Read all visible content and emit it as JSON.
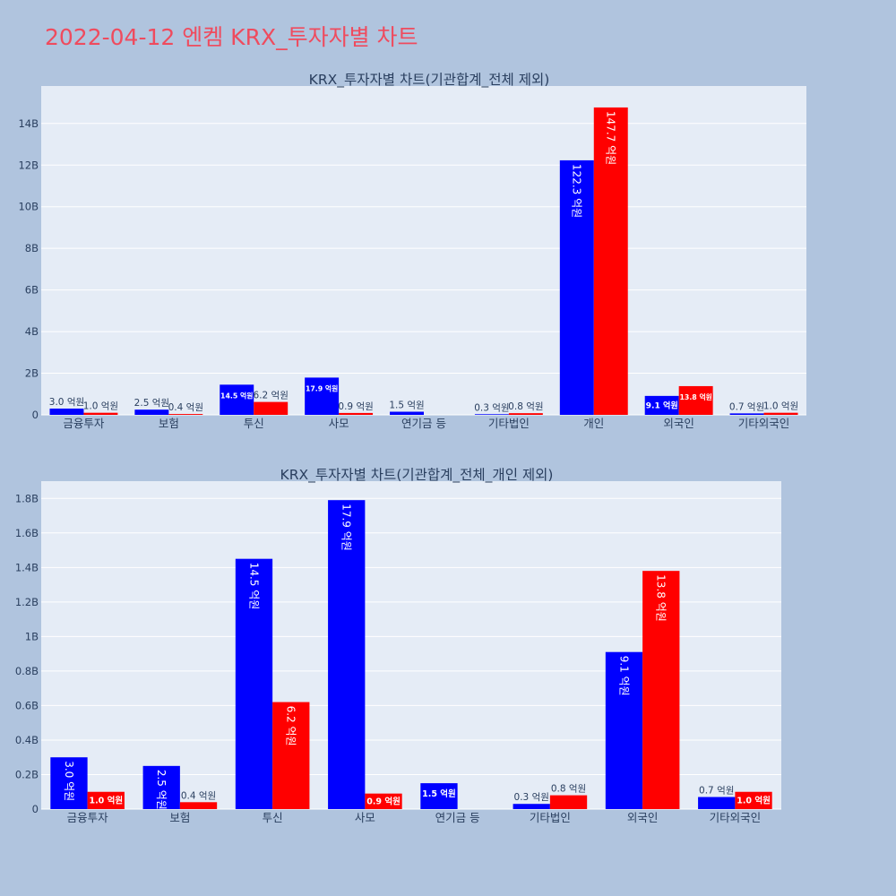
{
  "title": "2022-04-12 엔켐 KRX_투자자별 차트",
  "colors": {
    "background": "#b0c4de",
    "plot_bg": "#e5ecf6",
    "grid": "#ffffff",
    "title": "#ef4b5e",
    "text": "#2a3f5f",
    "buy": "#0000ff",
    "sell": "#ff0000"
  },
  "chart_data": [
    {
      "type": "bar",
      "title": "KRX_투자자별 차트(기관합계_전체 제외)",
      "categories": [
        "금융투자",
        "보험",
        "투신",
        "사모",
        "연기금 등",
        "기타법인",
        "개인",
        "외국인",
        "기타외국인"
      ],
      "series": [
        {
          "color": "#0000ff",
          "values": [
            300000000,
            250000000,
            1450000000,
            1790000000,
            150000000,
            30000000,
            12230000000,
            910000000,
            70000000
          ],
          "labels": [
            "3.0 억원",
            "2.5 억원",
            "14.5 억원",
            "17.9 억원",
            "1.5 억원",
            "0.3 억원",
            "122.3 억원",
            "9.1 억원",
            "0.7 억원"
          ]
        },
        {
          "color": "#ff0000",
          "values": [
            100000000,
            40000000,
            620000000,
            90000000,
            0,
            80000000,
            14770000000,
            1380000000,
            100000000
          ],
          "labels": [
            "1.0 억원",
            "0.4 억원",
            "6.2 억원",
            "0.9 억원",
            "",
            "0.8 억원",
            "147.7 억원",
            "13.8 억원",
            "1.0 억원"
          ]
        }
      ],
      "ylim": [
        0,
        15800000000
      ],
      "yticks": [
        0,
        2000000000,
        4000000000,
        6000000000,
        8000000000,
        10000000000,
        12000000000,
        14000000000
      ],
      "ytick_labels": [
        "0",
        "2B",
        "4B",
        "6B",
        "8B",
        "10B",
        "12B",
        "14B"
      ],
      "grid": true
    },
    {
      "type": "bar",
      "title": "KRX_투자자별 차트(기관합계_전체_개인 제외)",
      "categories": [
        "금융투자",
        "보험",
        "투신",
        "사모",
        "연기금 등",
        "기타법인",
        "외국인",
        "기타외국인"
      ],
      "series": [
        {
          "color": "#0000ff",
          "values": [
            300000000,
            250000000,
            1450000000,
            1790000000,
            150000000,
            30000000,
            910000000,
            70000000
          ],
          "labels": [
            "3.0 억원",
            "2.5 억원",
            "14.5 억원",
            "17.9 억원",
            "1.5 억원",
            "0.3 억원",
            "9.1 억원",
            "0.7 억원"
          ]
        },
        {
          "color": "#ff0000",
          "values": [
            100000000,
            40000000,
            620000000,
            90000000,
            0,
            80000000,
            1380000000,
            100000000
          ],
          "labels": [
            "1.0 억원",
            "0.4 억원",
            "6.2 억원",
            "0.9 억원",
            "",
            "0.8 억원",
            "13.8 억원",
            "1.0 억원"
          ]
        }
      ],
      "ylim": [
        0,
        1900000000
      ],
      "yticks": [
        0,
        200000000,
        400000000,
        600000000,
        800000000,
        1000000000,
        1200000000,
        1400000000,
        1600000000,
        1800000000
      ],
      "ytick_labels": [
        "0",
        "0.2B",
        "0.4B",
        "0.6B",
        "0.8B",
        "1B",
        "1.2B",
        "1.4B",
        "1.6B",
        "1.8B"
      ],
      "grid": true
    }
  ]
}
